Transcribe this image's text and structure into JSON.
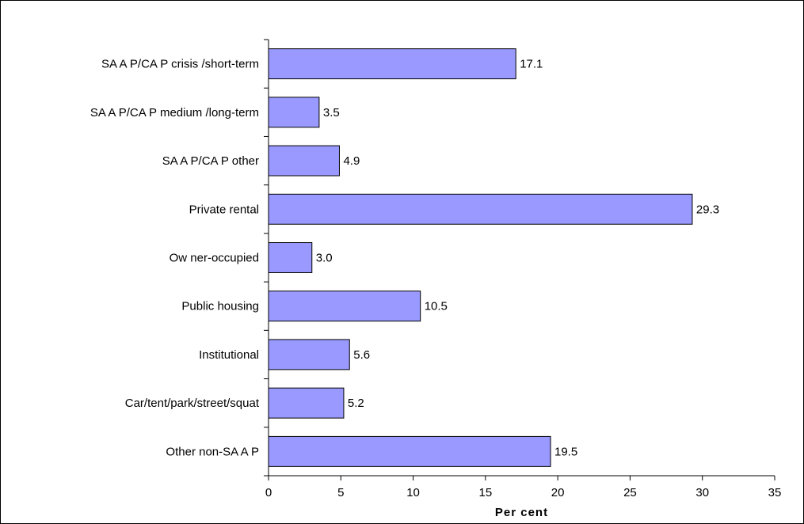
{
  "chart_data": {
    "type": "bar",
    "orientation": "horizontal",
    "categories": [
      "SA A P/CA P crisis /short-term",
      "SA A P/CA P medium /long-term",
      "SA A P/CA P other",
      "Private rental",
      "Ow ner-occupied",
      "Public housing",
      "Institutional",
      "Car/tent/park/street/squat",
      "Other non-SA A P"
    ],
    "values": [
      17.1,
      3.5,
      4.9,
      29.3,
      3.0,
      10.5,
      5.6,
      5.2,
      19.5
    ],
    "data_labels": [
      "17.1",
      "3.5",
      "4.9",
      "29.3",
      "3.0",
      "10.5",
      "5.6",
      "5.2",
      "19.5"
    ],
    "title": "",
    "xlabel": "Per cent",
    "ylabel": "",
    "xlim": [
      0,
      35
    ],
    "xticks": [
      0,
      5,
      10,
      15,
      20,
      25,
      30,
      35
    ],
    "grid": false,
    "legend": "none",
    "bar_color": "#9999ff",
    "bar_edge_color": "#000000"
  }
}
